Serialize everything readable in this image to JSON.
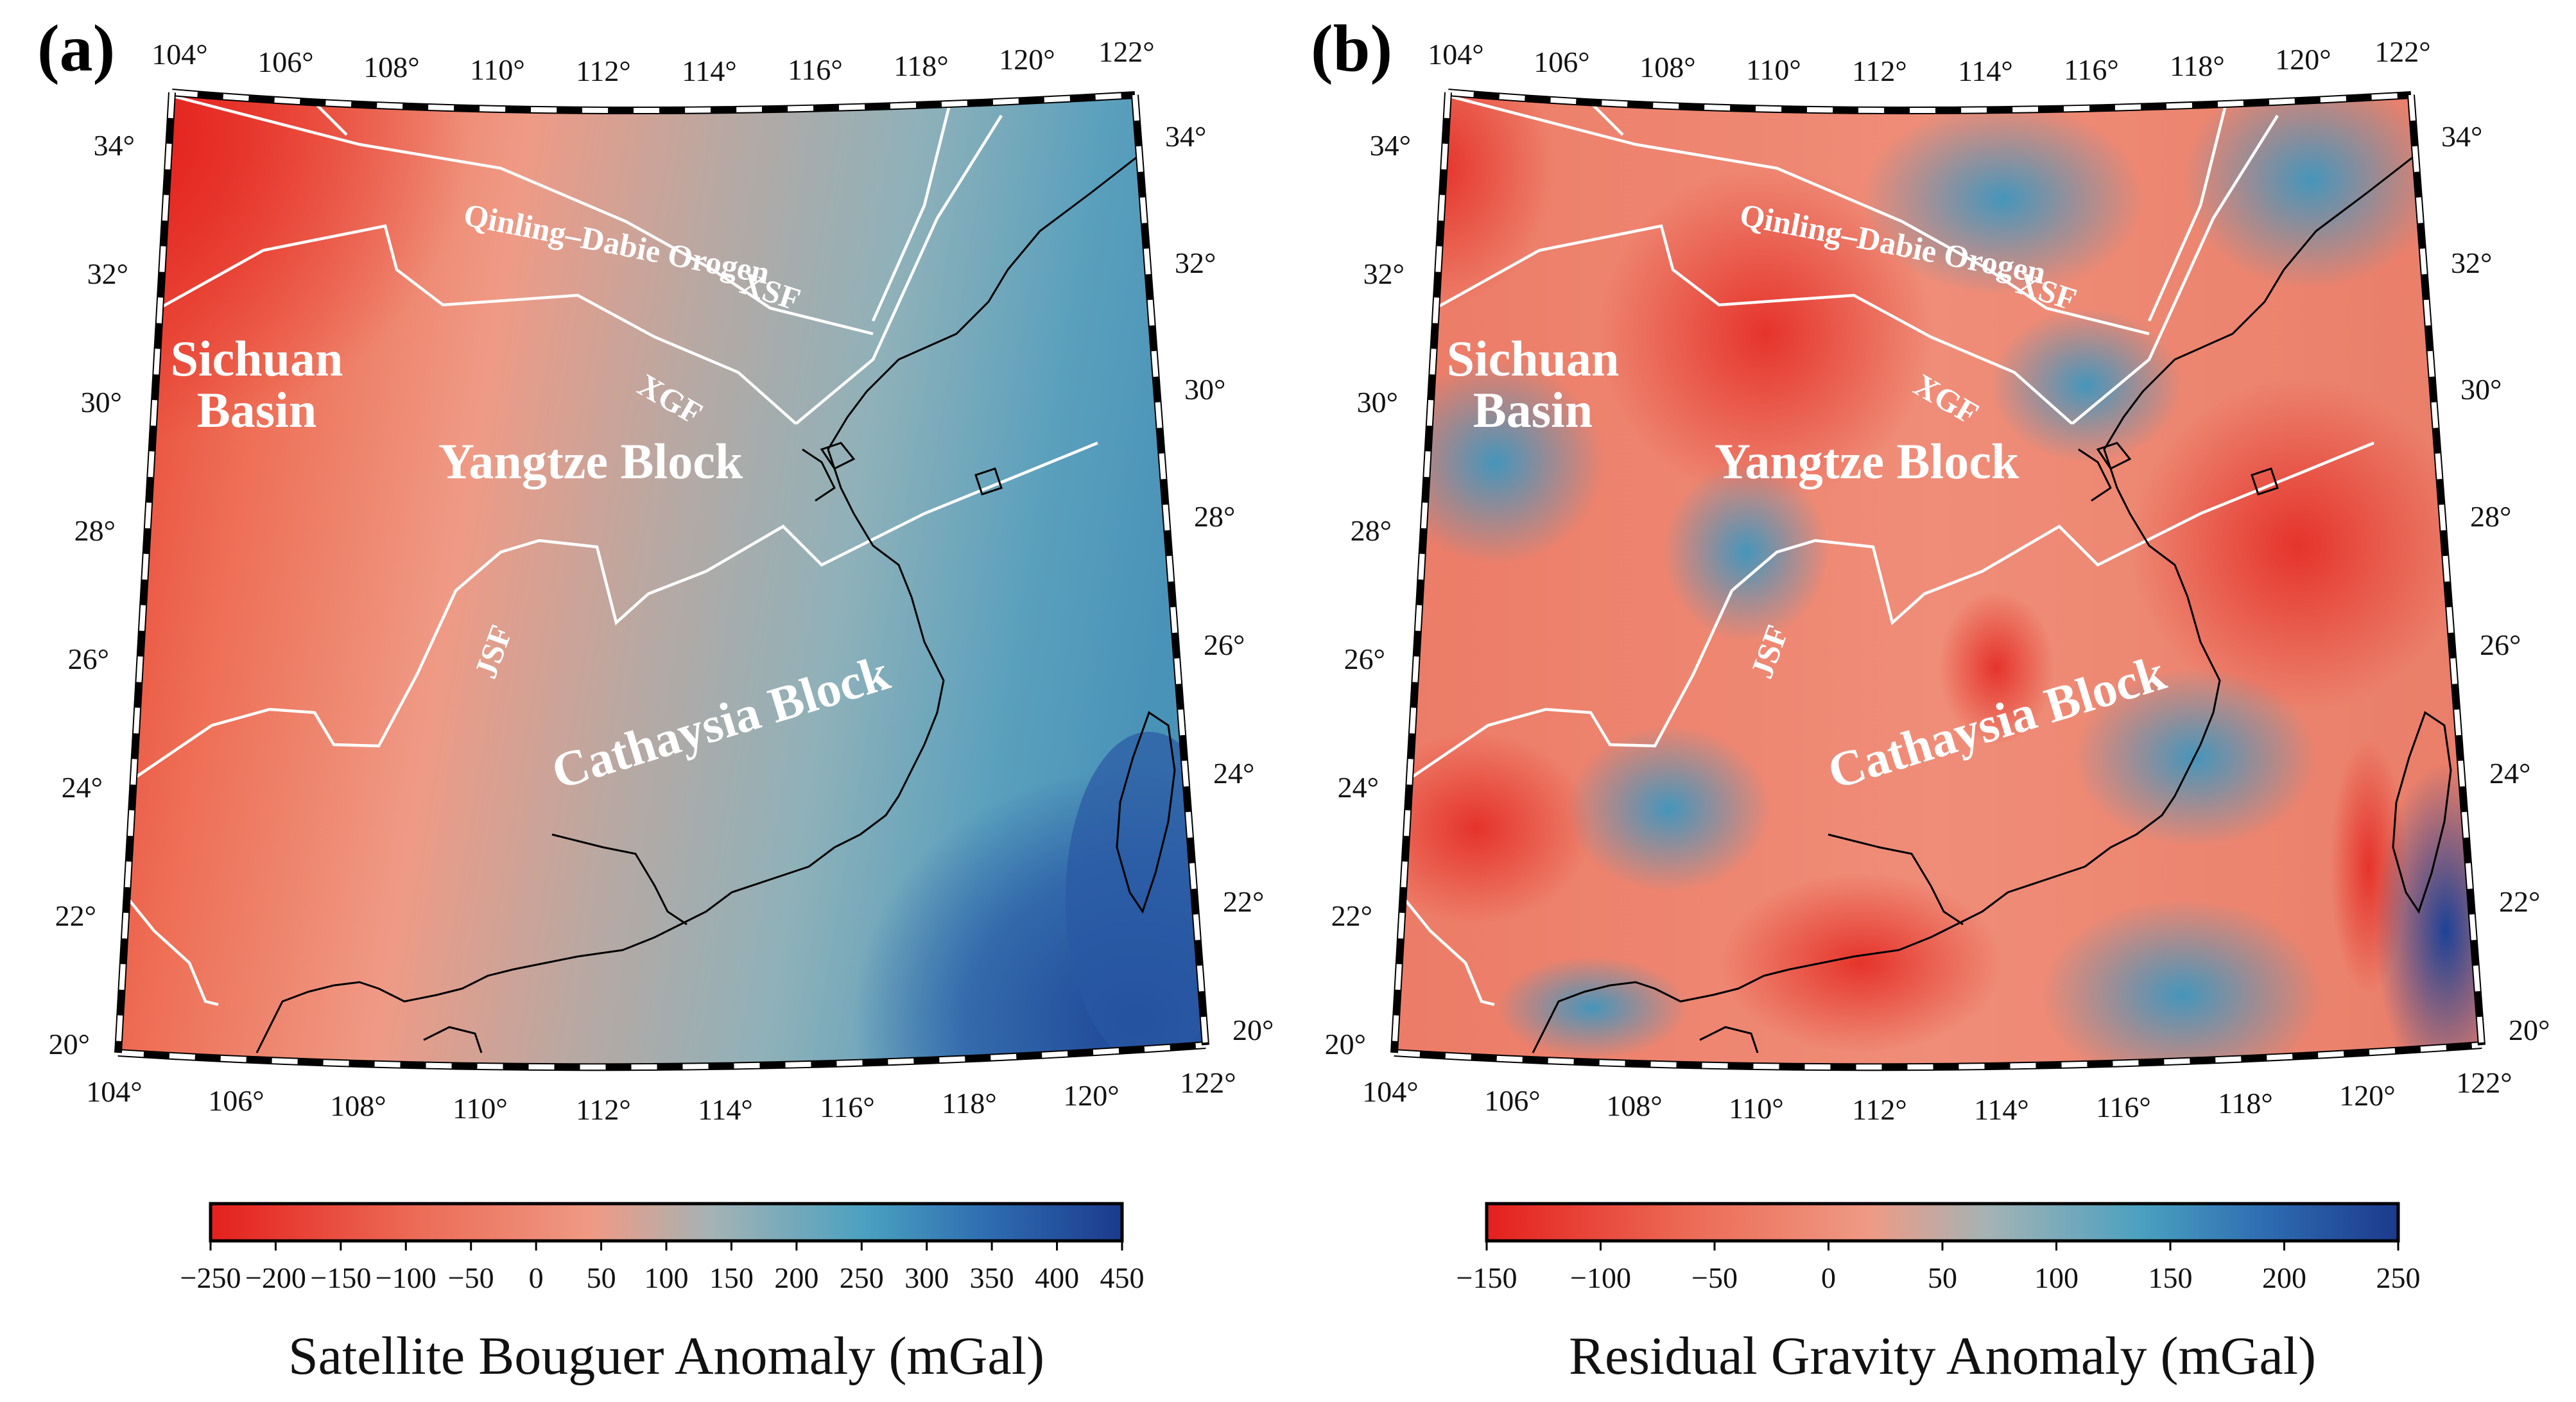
{
  "panels": [
    {
      "label": "(a)",
      "colorbar": {
        "title": "Satellite Bouguer Anomaly (mGal)",
        "min": -250,
        "max": 450,
        "ticks": [
          "−250",
          "−200",
          "−150",
          "−100",
          "−50",
          "0",
          "50",
          "100",
          "150",
          "200",
          "250",
          "300",
          "350",
          "400",
          "450"
        ]
      }
    },
    {
      "label": "(b)",
      "colorbar": {
        "title": "Residual Gravity Anomaly (mGal)",
        "min": -150,
        "max": 250,
        "ticks": [
          "−150",
          "−100",
          "−50",
          "0",
          "50",
          "100",
          "150",
          "200",
          "250"
        ]
      }
    }
  ],
  "axes": {
    "top_lon": [
      "104°",
      "106°",
      "108°",
      "110°",
      "112°",
      "114°",
      "116°",
      "118°",
      "120°",
      "122°"
    ],
    "bottom_lon": [
      "104°",
      "106°",
      "108°",
      "110°",
      "112°",
      "114°",
      "116°",
      "118°",
      "120°",
      "122°"
    ],
    "left_lat": [
      "34°",
      "32°",
      "30°",
      "28°",
      "26°",
      "24°",
      "22°",
      "20°"
    ],
    "right_lat": [
      "34°",
      "32°",
      "30°",
      "28°",
      "26°",
      "24°",
      "22°",
      "20°"
    ]
  },
  "regions": {
    "sichuan_line1": "Sichuan",
    "sichuan_line2": "Basin",
    "yangtze": "Yangtze Block",
    "cathaysia": "Cathaysia Block",
    "qinling": "Qinling–Dabie Orogen",
    "xsf": "XSF",
    "xgf": "XGF",
    "jsf": "JSF"
  },
  "colors": {
    "red": "#e8322a",
    "salmon": "#ef9585",
    "grey": "#a9b4b6",
    "teal": "#4a9cb7",
    "blue": "#254c9c",
    "navy": "#1e3d8f"
  }
}
